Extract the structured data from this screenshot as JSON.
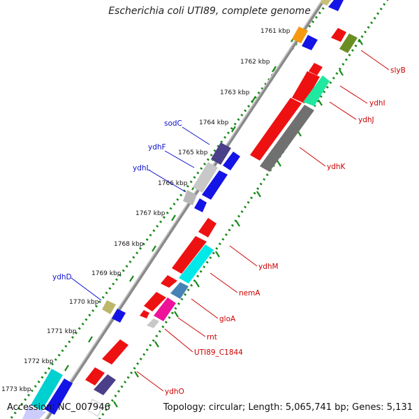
{
  "title": "Escherichia coli UTI89, complete genome",
  "footer": {
    "accession": "Accession: NC_007946",
    "summary": "Topology: circular; Length: 5,065,741 bp; Genes: 5,131"
  },
  "ticks": [
    "1761 kbp",
    "1762 kbp",
    "1763 kbp",
    "1764 kbp",
    "1765 kbp",
    "1766 kbp",
    "1767 kbp",
    "1768 kbp",
    "1769 kbp",
    "1770 kbp",
    "1771 kbp",
    "1772 kbp",
    "1773 kbp"
  ],
  "colors": {
    "forward_label": "#1010cc",
    "reverse_label": "#cc0000",
    "backbone": "#888888",
    "dots": "#1a8a1a"
  },
  "forward_labels": [
    "sodC",
    "ydhF",
    "ydhL",
    "ydhD"
  ],
  "reverse_labels": [
    "slyB",
    "ydhI",
    "ydhJ",
    "ydhK",
    "ydhM",
    "nemA",
    "gloA",
    "rnt",
    "UTI89_C1844",
    "ydhO"
  ]
}
